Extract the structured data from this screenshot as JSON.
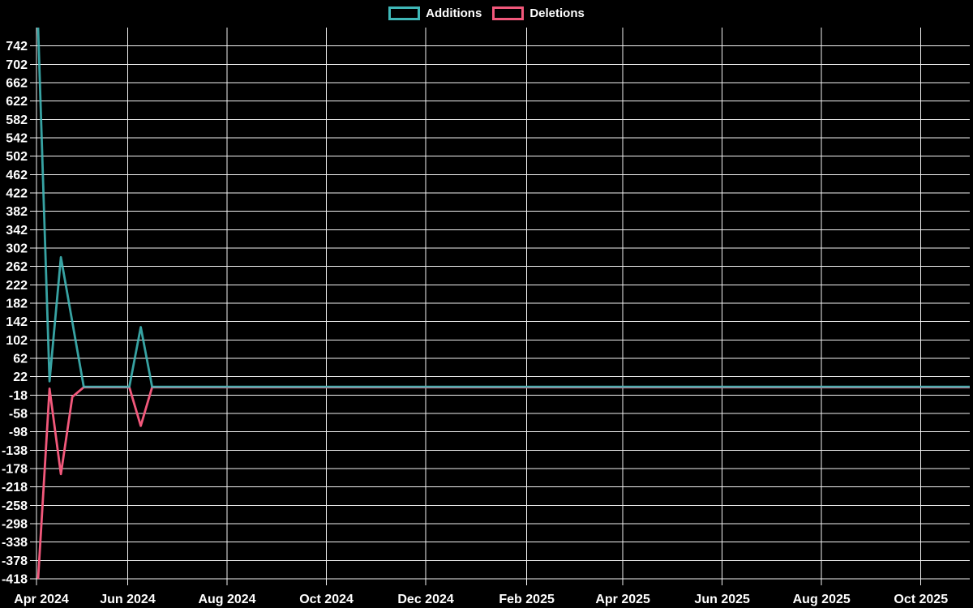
{
  "app": {
    "background_color": "#000000",
    "text_color": "#ffffff",
    "grid_color": "#f2f2f2"
  },
  "legend": {
    "items": [
      {
        "label": "Additions",
        "color": "#3fb8b8"
      },
      {
        "label": "Deletions",
        "color": "#f2587b"
      }
    ]
  },
  "chart_data": {
    "type": "line",
    "title": "",
    "legend_position": "top-center",
    "grid": true,
    "background_color": "#000000",
    "x_type": "time",
    "x_domain": [
      "2024-04-06",
      "2025-10-31"
    ],
    "x_tick_labels": [
      "Apr 2024",
      "Jun 2024",
      "Aug 2024",
      "Oct 2024",
      "Dec 2024",
      "Feb 2025",
      "Apr 2025",
      "Jun 2025",
      "Aug 2025",
      "Oct 2025"
    ],
    "x_tick_dates": [
      "2024-04-06",
      "2024-06-01",
      "2024-08-01",
      "2024-10-01",
      "2024-12-01",
      "2025-02-01",
      "2025-04-01",
      "2025-06-01",
      "2025-08-01",
      "2025-10-01"
    ],
    "y_axis_range": [
      -418,
      782
    ],
    "y_tick_step": 40,
    "y_tick_labels": [
      742,
      702,
      662,
      622,
      582,
      542,
      502,
      462,
      422,
      382,
      342,
      302,
      262,
      222,
      182,
      142,
      102,
      62,
      22,
      -18,
      -58,
      -98,
      -138,
      -178,
      -218,
      -258,
      -298,
      -338,
      -378,
      -418
    ],
    "series": [
      {
        "name": "Additions",
        "color": "#3fb8b8",
        "points": [
          [
            "2024-04-07",
            782
          ],
          [
            "2024-04-14",
            12
          ],
          [
            "2024-04-21",
            282
          ],
          [
            "2024-04-28",
            141
          ],
          [
            "2024-05-05",
            0
          ],
          [
            "2024-06-02",
            0
          ],
          [
            "2024-06-09",
            130
          ],
          [
            "2024-06-16",
            0
          ],
          [
            "2025-10-31",
            0
          ]
        ]
      },
      {
        "name": "Deletions",
        "color": "#f2587b",
        "points": [
          [
            "2024-04-07",
            -418
          ],
          [
            "2024-04-14",
            -4
          ],
          [
            "2024-04-21",
            -190
          ],
          [
            "2024-04-28",
            -22
          ],
          [
            "2024-05-05",
            -1
          ],
          [
            "2024-06-02",
            -1
          ],
          [
            "2024-06-09",
            -85
          ],
          [
            "2024-06-16",
            -1
          ],
          [
            "2025-10-31",
            -1
          ]
        ]
      }
    ]
  }
}
